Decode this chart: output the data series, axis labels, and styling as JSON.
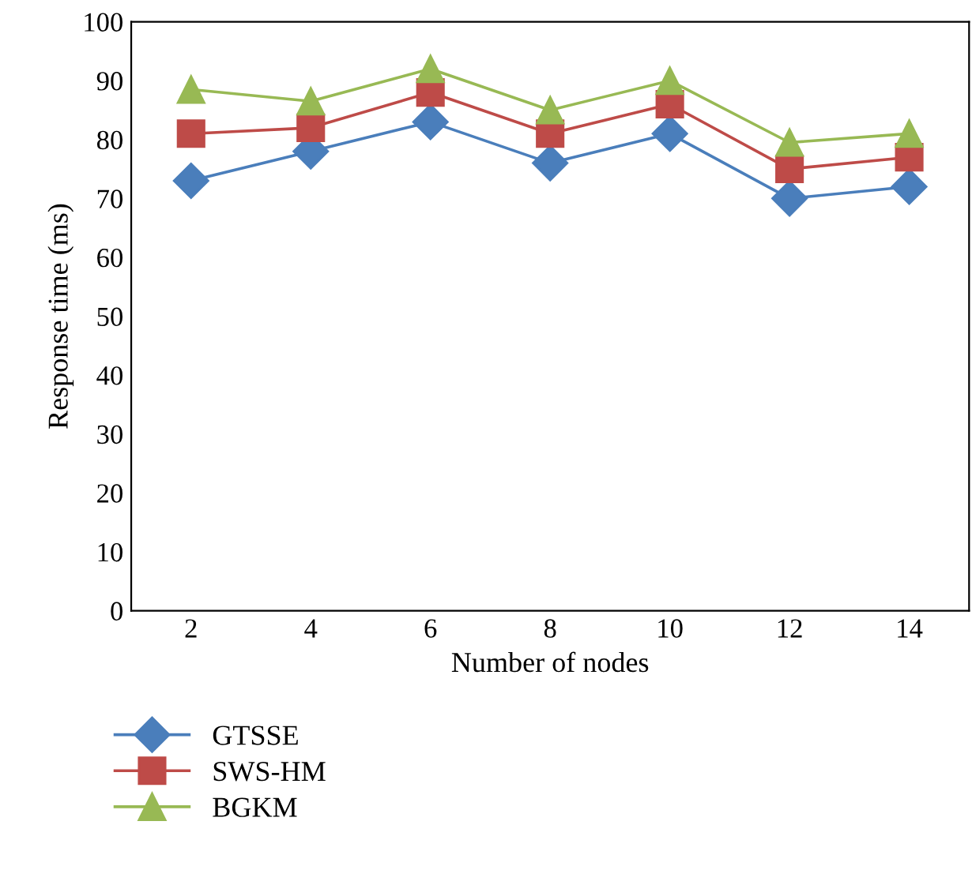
{
  "chart_data": {
    "type": "line",
    "xlabel": "Number of nodes",
    "ylabel": "Response time (ms)",
    "categories": [
      "2",
      "4",
      "6",
      "8",
      "10",
      "12",
      "14"
    ],
    "series": [
      {
        "name": "GTSSE",
        "color": "#4a7ebb",
        "marker": "diamond",
        "values": [
          73,
          78,
          83,
          76,
          81,
          70,
          72
        ]
      },
      {
        "name": "SWS-HM",
        "color": "#be4b48",
        "marker": "square",
        "values": [
          81,
          82,
          88,
          81,
          86,
          75,
          77
        ]
      },
      {
        "name": "BGKM",
        "color": "#98b954",
        "marker": "triangle",
        "values": [
          88.5,
          86.5,
          92,
          85,
          90,
          79.5,
          81
        ]
      }
    ],
    "ylim": [
      0,
      100
    ],
    "yticks": [
      0,
      10,
      20,
      30,
      40,
      50,
      60,
      70,
      80,
      90,
      100
    ],
    "grid": false,
    "legend": "bottom left"
  }
}
